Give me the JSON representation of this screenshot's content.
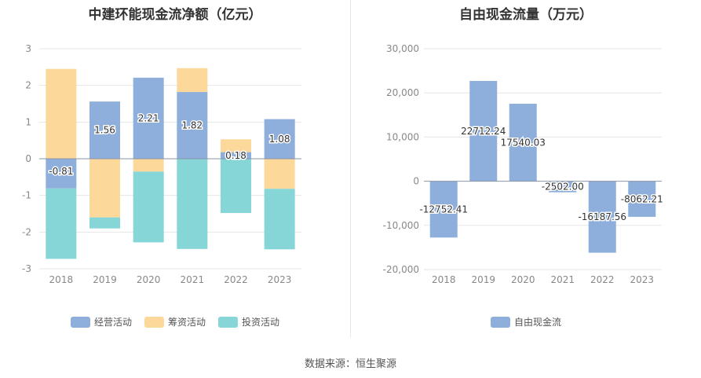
{
  "source": "数据来源：恒生聚源",
  "colors": {
    "operating": "#8eaedb",
    "financing": "#fdd89b",
    "investing": "#86d6d8",
    "fcf": "#8eaedb"
  },
  "chart_data": [
    {
      "type": "bar",
      "stacked": true,
      "title": "中建环能现金流净额（亿元）",
      "categories": [
        "2018",
        "2019",
        "2020",
        "2021",
        "2022",
        "2023"
      ],
      "ylim": [
        -3,
        3
      ],
      "yticks": [
        "3",
        "2",
        "1",
        "0",
        "-1",
        "-2",
        "-3"
      ],
      "legend_position": "bottom",
      "series": [
        {
          "name": "经营活动",
          "values": [
            -0.81,
            1.56,
            2.21,
            1.82,
            0.18,
            1.08
          ],
          "labels": [
            "-0.81",
            "1.56",
            "2.21",
            "1.82",
            "0.18",
            "1.08"
          ]
        },
        {
          "name": "筹资活动",
          "values": [
            2.45,
            -1.6,
            -0.35,
            0.65,
            0.35,
            -0.82
          ]
        },
        {
          "name": "投资活动",
          "values": [
            -1.92,
            -0.3,
            -1.93,
            -2.46,
            -1.48,
            -1.65
          ]
        }
      ]
    },
    {
      "type": "bar",
      "title": "自由现金流量（万元）",
      "categories": [
        "2018",
        "2019",
        "2020",
        "2021",
        "2022",
        "2023"
      ],
      "ylim": [
        -20000,
        30000
      ],
      "yticks": [
        "30,000",
        "20,000",
        "10,000",
        "0",
        "-10,000",
        "-20,000"
      ],
      "legend_position": "bottom",
      "series": [
        {
          "name": "自由现金流",
          "values": [
            -12752.41,
            22712.24,
            17540.03,
            -2502.0,
            -16187.56,
            -8062.21
          ],
          "labels": [
            "-12752.41",
            "22712.24",
            "17540.03",
            "-2502.00",
            "-16187.56",
            "-8062.21"
          ]
        }
      ]
    }
  ]
}
